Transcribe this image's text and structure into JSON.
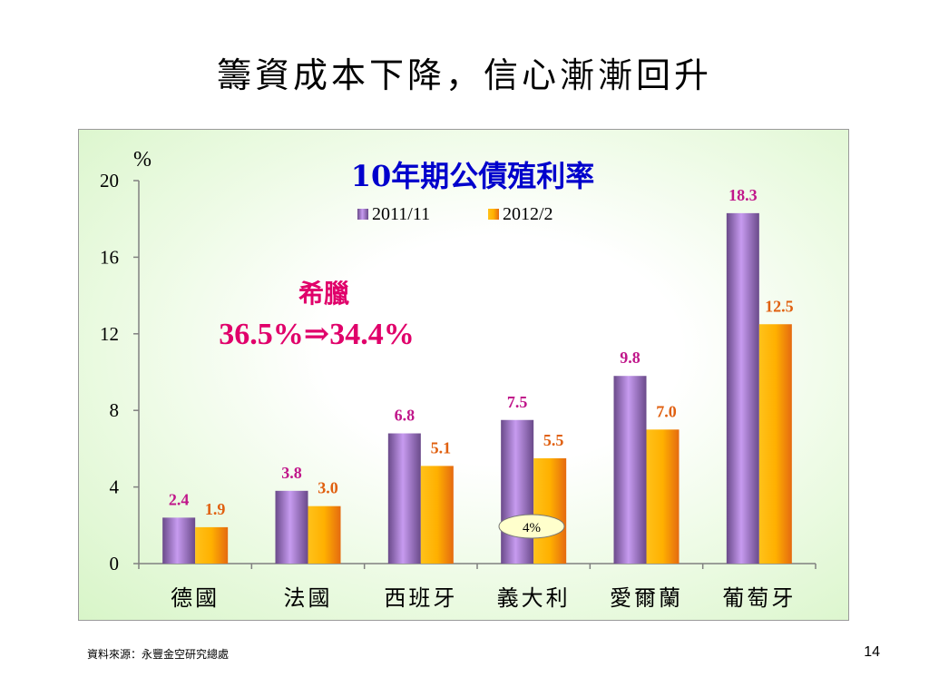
{
  "slide": {
    "title": "籌資成本下降，信心漸漸回升",
    "source": "資料來源：永豐金空研究總處",
    "page_number": "14"
  },
  "chart_data": {
    "type": "bar",
    "title": "10年期公債殖利率",
    "ylabel": "%",
    "ylim": [
      0,
      20
    ],
    "yticks": [
      0,
      4,
      8,
      12,
      16,
      20
    ],
    "categories": [
      "德國",
      "法國",
      "西班牙",
      "義大利",
      "愛爾蘭",
      "葡萄牙"
    ],
    "series": [
      {
        "name": "2011/11",
        "values": [
          2.4,
          3.8,
          6.8,
          7.5,
          9.8,
          18.3
        ],
        "labels": [
          "2.4",
          "3.8",
          "6.8",
          "7.5",
          "9.8",
          "18.3"
        ],
        "color": "#b07fe0",
        "label_color": "#c0168a"
      },
      {
        "name": "2012/2",
        "values": [
          1.9,
          3.0,
          5.1,
          5.5,
          7.0,
          12.5
        ],
        "labels": [
          "1.9",
          "3.0",
          "5.1",
          "5.5",
          "7.0",
          "12.5"
        ],
        "color": "#ffb000",
        "label_color": "#e06010"
      }
    ],
    "legend_position": "top-center",
    "annotations": {
      "greece_name": "希臘",
      "greece_value": "36.5%⇒34.4%",
      "greece_color": "#e0006a",
      "italy_bubble": "4%"
    },
    "title_color": "#0000cc"
  }
}
